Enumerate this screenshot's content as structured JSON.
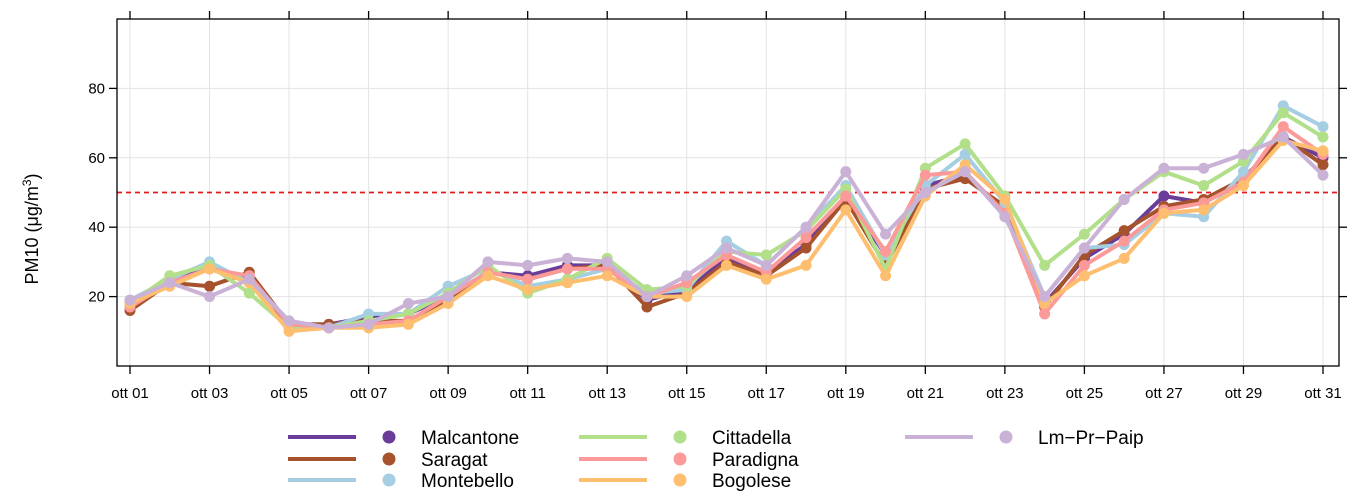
{
  "chart_data": {
    "type": "line",
    "ylabel_main": "PM10 (μg/m",
    "ylabel_sup": "3",
    "ylabel_close": ")",
    "xlabel": "",
    "ylim": [
      0,
      100
    ],
    "yticks": [
      20,
      40,
      60,
      80
    ],
    "grid": true,
    "threshold": {
      "value": 50,
      "color": "#e31a1c",
      "style": "dashed"
    },
    "x": [
      "ott 01",
      "ott 02",
      "ott 03",
      "ott 04",
      "ott 05",
      "ott 06",
      "ott 07",
      "ott 08",
      "ott 09",
      "ott 10",
      "ott 11",
      "ott 12",
      "ott 13",
      "ott 14",
      "ott 15",
      "ott 16",
      "ott 17",
      "ott 18",
      "ott 19",
      "ott 20",
      "ott 21",
      "ott 22",
      "ott 23",
      "ott 24",
      "ott 25",
      "ott 26",
      "ott 27",
      "ott 28",
      "ott 29",
      "ott 30",
      "ott 31"
    ],
    "xtick_labels": [
      "ott 01",
      "ott 03",
      "ott 05",
      "ott 07",
      "ott 09",
      "ott 11",
      "ott 13",
      "ott 15",
      "ott 17",
      "ott 19",
      "ott 21",
      "ott 23",
      "ott 25",
      "ott 27",
      "ott 29",
      "ott 31"
    ],
    "legend_position": "bottom",
    "series": [
      {
        "name": "Malcantone",
        "color": "#6a3d9a",
        "values": [
          18,
          25,
          28,
          25,
          12,
          12,
          14,
          15,
          20,
          27,
          26,
          29,
          29,
          19,
          22,
          31,
          27,
          35,
          49,
          32,
          52,
          55,
          45,
          18,
          31,
          38,
          49,
          47,
          54,
          66,
          60
        ]
      },
      {
        "name": "Saragat",
        "color": "#a6522c",
        "values": [
          16,
          24,
          23,
          27,
          12,
          12,
          13,
          13,
          19,
          27,
          25,
          28,
          29,
          17,
          21,
          30,
          26,
          34,
          48,
          29,
          51,
          54,
          46,
          17,
          32,
          39,
          46,
          48,
          54,
          66,
          58
        ]
      },
      {
        "name": "Montebello",
        "color": "#a6cee3",
        "values": [
          19,
          25,
          30,
          24,
          13,
          11,
          15,
          15,
          23,
          28,
          23,
          25,
          28,
          21,
          22,
          36,
          29,
          40,
          52,
          32,
          52,
          61,
          47,
          20,
          34,
          35,
          44,
          43,
          56,
          75,
          69
        ]
      },
      {
        "name": "Cittadella",
        "color": "#b2df8a",
        "values": [
          18,
          26,
          29,
          21,
          11,
          11,
          13,
          15,
          21,
          29,
          21,
          25,
          31,
          22,
          23,
          33,
          32,
          39,
          51,
          28,
          57,
          64,
          49,
          29,
          38,
          48,
          56,
          52,
          59,
          73,
          66
        ]
      },
      {
        "name": "Paradigna",
        "color": "#fb9a99",
        "values": [
          17,
          24,
          28,
          26,
          12,
          11,
          12,
          13,
          20,
          27,
          25,
          28,
          28,
          20,
          24,
          32,
          27,
          37,
          49,
          33,
          55,
          56,
          44,
          15,
          29,
          36,
          45,
          47,
          53,
          69,
          61
        ]
      },
      {
        "name": "Bogolese",
        "color": "#fdbf6f",
        "values": [
          18,
          23,
          28,
          24,
          10,
          11,
          11,
          12,
          18,
          26,
          22,
          24,
          26,
          20,
          20,
          29,
          25,
          29,
          45,
          26,
          49,
          58,
          48,
          18,
          26,
          31,
          44,
          45,
          52,
          65,
          62
        ]
      },
      {
        "name": "Lm−Pr−Paip",
        "color": "#cab2d6",
        "values": [
          19,
          24,
          20,
          25,
          13,
          11,
          12,
          18,
          20,
          30,
          29,
          31,
          30,
          20,
          26,
          34,
          29,
          40,
          56,
          38,
          50,
          56,
          43,
          20,
          34,
          48,
          57,
          57,
          61,
          66,
          55
        ]
      }
    ]
  }
}
